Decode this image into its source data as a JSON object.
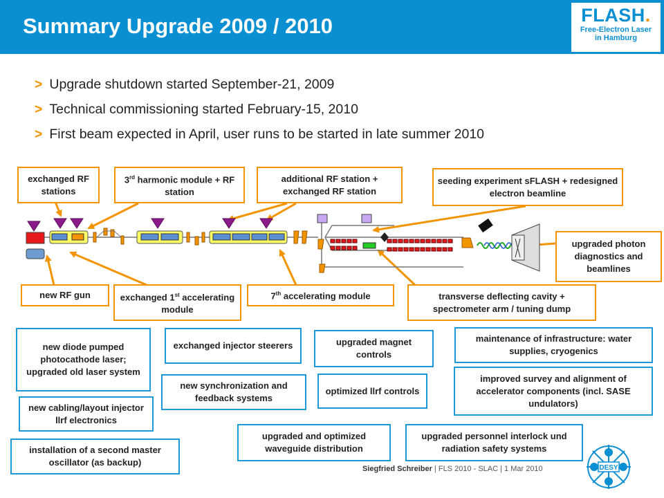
{
  "header": {
    "title": "Summary Upgrade 2009 / 2010",
    "logo_main": "FLASH",
    "logo_dot": ".",
    "logo_line1": "Free-Electron Laser",
    "logo_line2": "in Hamburg"
  },
  "bullets": [
    "Upgrade shutdown started September-21, 2009",
    "Technical commissioning started February-15, 2010",
    "First beam expected in April, user runs to be started in late summer 2010"
  ],
  "bullet_marker": ">",
  "diagram_labels": {
    "exchanged_rf_stations": "exchanged RF stations",
    "third_harmonic_pre": "3",
    "third_harmonic_sup": "rd",
    "third_harmonic_post": " harmonic module + RF station",
    "additional_rf": "additional RF station + exchanged RF station",
    "seeding": "seeding experiment sFLASH + redesigned electron beamline",
    "photon_diagnostics": "upgraded photon diagnostics and beamlines",
    "new_rf_gun": "new RF gun",
    "first_module_pre": "exchanged 1",
    "first_module_sup": "st",
    "first_module_post": " accelerating module",
    "seventh_module_pre": "7",
    "seventh_module_sup": "th",
    "seventh_module_post": " accelerating module",
    "transverse": "transverse deflecting cavity + spectrometer arm / tuning dump"
  },
  "upgrade_items": {
    "diode_laser": "new diode pumped photocathode laser; upgraded old laser system",
    "injector_steerers": "exchanged injector steerers",
    "magnet_controls": "upgraded magnet controls",
    "infrastructure": "maintenance of infrastructure: water supplies, cryogenics",
    "synchronization": "new synchronization and feedback systems",
    "llrf_controls": "optimized llrf controls",
    "survey_alignment": "improved survey and alignment of accelerator components (incl. SASE undulators)",
    "cabling": "new cabling/layout injector llrf electronics",
    "master_oscillator": "installation of a second master oscillator (as backup)",
    "waveguide": "upgraded and optimized waveguide distribution",
    "interlock": "upgraded personnel interlock und radiation safety systems"
  },
  "footer": {
    "author": "Siegfried Schreiber",
    "details": " | FLS 2010 - SLAC | 1 Mar 2010"
  },
  "desy_logo_text": "DESY",
  "colors": {
    "header_blue": "#0b8fd3",
    "accent_orange": "#f29400",
    "box_blue": "#1a9ad9",
    "module_yellow": "#ffff66",
    "klystron_purple": "#8b1a8b"
  }
}
